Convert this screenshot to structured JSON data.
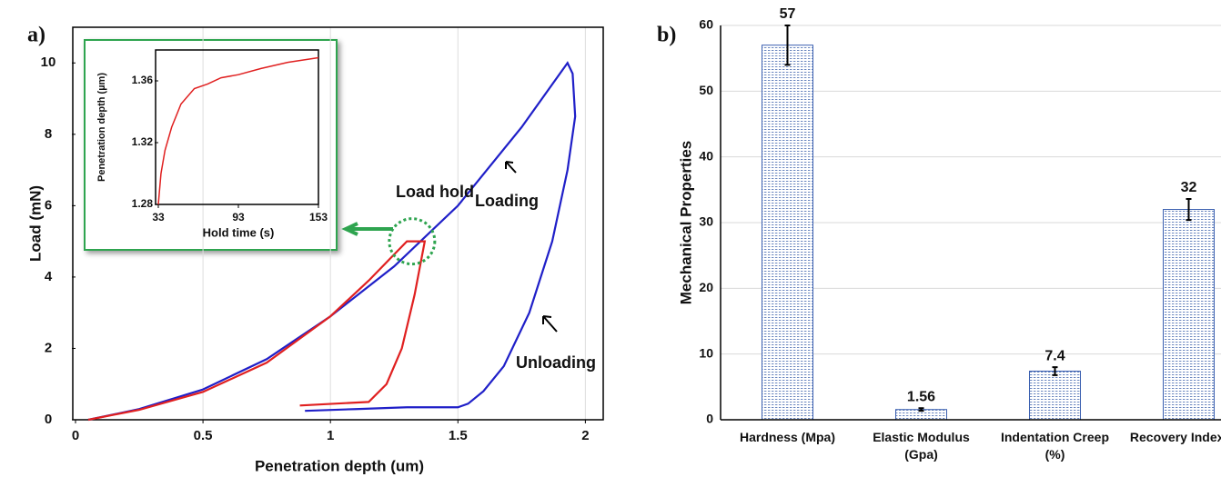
{
  "chart_data": [
    {
      "type": "line",
      "label": "a)",
      "xlabel": "Penetration depth (um)",
      "ylabel": "Load (mN)",
      "xlim": [
        0,
        2.07
      ],
      "ylim": [
        0,
        11
      ],
      "xticks": [
        0,
        0.5,
        1,
        1.5,
        2
      ],
      "yticks": [
        0,
        2,
        4,
        6,
        8,
        10
      ],
      "grid": "x",
      "annotations": [
        "Load hold",
        "Loading",
        "Unloading"
      ],
      "series": [
        {
          "color": "#1f1fc8",
          "x": [
            0.05,
            0.25,
            0.5,
            0.75,
            1.0,
            1.25,
            1.5,
            1.75,
            1.93,
            1.95,
            1.96,
            1.93,
            1.87,
            1.78,
            1.68,
            1.6,
            1.54,
            1.5,
            1.3,
            1.1,
            0.9
          ],
          "values": [
            0,
            0.3,
            0.85,
            1.7,
            2.9,
            4.3,
            6.0,
            8.2,
            10,
            9.7,
            8.5,
            7,
            5,
            3,
            1.5,
            0.8,
            0.45,
            0.35,
            0.35,
            0.3,
            0.25
          ]
        },
        {
          "color": "#e02020",
          "x": [
            0.05,
            0.25,
            0.5,
            0.75,
            1.0,
            1.15,
            1.3,
            1.37,
            1.33,
            1.28,
            1.22,
            1.15,
            0.88
          ],
          "values": [
            0,
            0.28,
            0.78,
            1.6,
            2.9,
            3.9,
            5,
            5,
            3.5,
            2,
            1,
            0.5,
            0.4
          ]
        }
      ]
    },
    {
      "type": "line",
      "xlabel": "Hold time (s)",
      "ylabel": "Penetration depth (µm)",
      "xlim": [
        33,
        153
      ],
      "ylim": [
        1.28,
        1.38
      ],
      "xticks": [
        33,
        93,
        153
      ],
      "yticks": [
        1.28,
        1.32,
        1.36
      ],
      "series": [
        {
          "color": "#e02020",
          "x": [
            33,
            35,
            38,
            43,
            50,
            60,
            70,
            80,
            93,
            110,
            130,
            153
          ],
          "values": [
            1.28,
            1.3,
            1.315,
            1.33,
            1.345,
            1.355,
            1.358,
            1.362,
            1.364,
            1.368,
            1.372,
            1.375
          ]
        }
      ]
    },
    {
      "type": "bar",
      "label": "b)",
      "ylabel": "Mechanical Properties",
      "categories": [
        "Hardness (Mpa)",
        "Elastic Modulus (Gpa)",
        "Indentation Creep (%)",
        "Recovery Index (%)"
      ],
      "values": [
        57,
        1.56,
        7.4,
        32
      ],
      "errors": [
        3,
        0.2,
        0.6,
        1.6
      ],
      "color": "#3a5fb0",
      "ylim": [
        0,
        60
      ],
      "yticks": [
        0,
        10,
        20,
        30,
        40,
        50,
        60
      ],
      "grid": true
    }
  ]
}
